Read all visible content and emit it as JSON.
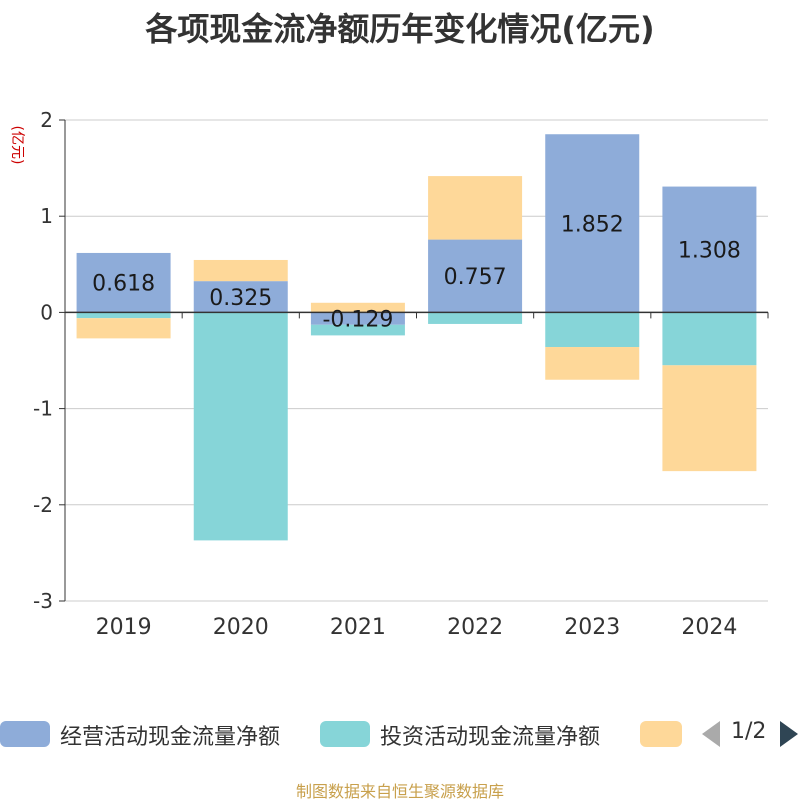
{
  "title": "各项现金流净额历年变化情况(亿元)",
  "source": "制图数据来自恒生聚源数据库",
  "legend": {
    "pager": "1/2"
  },
  "colors": {
    "operating": "#8eacd9",
    "investing": "#86d5d8",
    "financing": "#fed899",
    "axis": "#333333",
    "grid": "#cccccc",
    "unit": "#cc0000"
  },
  "chart_data": {
    "type": "bar",
    "stacked": true,
    "title": "各项现金流净额历年变化情况(亿元)",
    "ylabel": "(亿元)",
    "categories": [
      "2019",
      "2020",
      "2021",
      "2022",
      "2023",
      "2024"
    ],
    "ylim": [
      -3,
      2
    ],
    "yticks": [
      2,
      1,
      0,
      -1,
      -2,
      -3
    ],
    "grid": true,
    "legend_position": "bottom",
    "series": [
      {
        "name": "经营活动现金流量净额",
        "color": "#8eacd9",
        "values": [
          0.618,
          0.325,
          -0.129,
          0.757,
          1.852,
          1.308
        ],
        "labels": [
          "0.618",
          "0.325",
          "-0.129",
          "0.757",
          "1.852",
          "1.308"
        ]
      },
      {
        "name": "投资活动现金流量净额",
        "color": "#86d5d8",
        "values": [
          -0.06,
          -2.37,
          -0.11,
          -0.12,
          -0.36,
          -0.55
        ]
      },
      {
        "name": "",
        "color": "#fed899",
        "values": [
          -0.21,
          0.22,
          0.1,
          0.66,
          -0.34,
          -1.1
        ]
      }
    ]
  }
}
